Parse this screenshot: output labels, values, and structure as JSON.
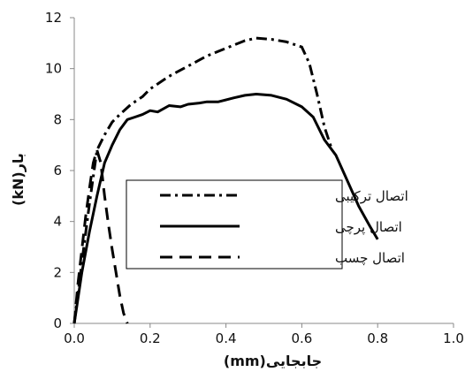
{
  "chart_data": {
    "type": "line",
    "title": "",
    "xlabel": "جابجایی(mm)",
    "ylabel": "بار(kN)",
    "xlim": [
      0,
      1.0
    ],
    "ylim": [
      0,
      12
    ],
    "x_ticks": [
      0.0,
      0.2,
      0.4,
      0.6,
      0.8,
      1.0
    ],
    "x_tick_labels": [
      "0.0",
      "0.2",
      "0.4",
      "0.6",
      "0.8",
      "1.0"
    ],
    "y_ticks": [
      0,
      2,
      4,
      6,
      8,
      10,
      12
    ],
    "y_tick_labels": [
      "0",
      "2",
      "4",
      "6",
      "8",
      "10",
      "12"
    ],
    "grid": false,
    "legend_position": "center",
    "series": [
      {
        "name": "اتصال ترکیبی",
        "style": "dash-dot",
        "color": "#000000",
        "points": [
          [
            0,
            0
          ],
          [
            0.02,
            2.4
          ],
          [
            0.04,
            4.7
          ],
          [
            0.06,
            6.8
          ],
          [
            0.08,
            7.4
          ],
          [
            0.1,
            7.9
          ],
          [
            0.12,
            8.2
          ],
          [
            0.15,
            8.6
          ],
          [
            0.18,
            8.9
          ],
          [
            0.2,
            9.2
          ],
          [
            0.25,
            9.7
          ],
          [
            0.3,
            10.1
          ],
          [
            0.35,
            10.5
          ],
          [
            0.4,
            10.8
          ],
          [
            0.45,
            11.1
          ],
          [
            0.48,
            11.2
          ],
          [
            0.52,
            11.15
          ],
          [
            0.56,
            11.05
          ],
          [
            0.6,
            10.85
          ],
          [
            0.62,
            10.2
          ],
          [
            0.64,
            9.0
          ],
          [
            0.66,
            7.7
          ],
          [
            0.68,
            6.8
          ]
        ]
      },
      {
        "name": "اتصال پرچی",
        "style": "solid",
        "color": "#000000",
        "points": [
          [
            0,
            0
          ],
          [
            0.02,
            2.0
          ],
          [
            0.04,
            3.6
          ],
          [
            0.06,
            5.0
          ],
          [
            0.08,
            6.3
          ],
          [
            0.1,
            7.0
          ],
          [
            0.12,
            7.6
          ],
          [
            0.14,
            8.0
          ],
          [
            0.16,
            8.1
          ],
          [
            0.18,
            8.2
          ],
          [
            0.2,
            8.35
          ],
          [
            0.22,
            8.3
          ],
          [
            0.25,
            8.55
          ],
          [
            0.28,
            8.5
          ],
          [
            0.3,
            8.6
          ],
          [
            0.33,
            8.65
          ],
          [
            0.35,
            8.7
          ],
          [
            0.38,
            8.7
          ],
          [
            0.42,
            8.85
          ],
          [
            0.45,
            8.95
          ],
          [
            0.48,
            9.0
          ],
          [
            0.52,
            8.95
          ],
          [
            0.56,
            8.8
          ],
          [
            0.6,
            8.5
          ],
          [
            0.63,
            8.1
          ],
          [
            0.66,
            7.2
          ],
          [
            0.69,
            6.6
          ],
          [
            0.72,
            5.6
          ],
          [
            0.75,
            4.6
          ],
          [
            0.78,
            3.8
          ],
          [
            0.8,
            3.3
          ]
        ]
      },
      {
        "name": "اتصال چسب",
        "style": "dashed",
        "color": "#000000",
        "points": [
          [
            0,
            0
          ],
          [
            0.01,
            1.6
          ],
          [
            0.02,
            2.9
          ],
          [
            0.03,
            4.2
          ],
          [
            0.04,
            5.3
          ],
          [
            0.05,
            6.3
          ],
          [
            0.06,
            6.8
          ],
          [
            0.07,
            6.3
          ],
          [
            0.08,
            5.0
          ],
          [
            0.09,
            3.9
          ],
          [
            0.1,
            2.9
          ],
          [
            0.11,
            2.0
          ],
          [
            0.12,
            1.1
          ],
          [
            0.13,
            0.4
          ],
          [
            0.14,
            0.0
          ]
        ]
      }
    ]
  }
}
